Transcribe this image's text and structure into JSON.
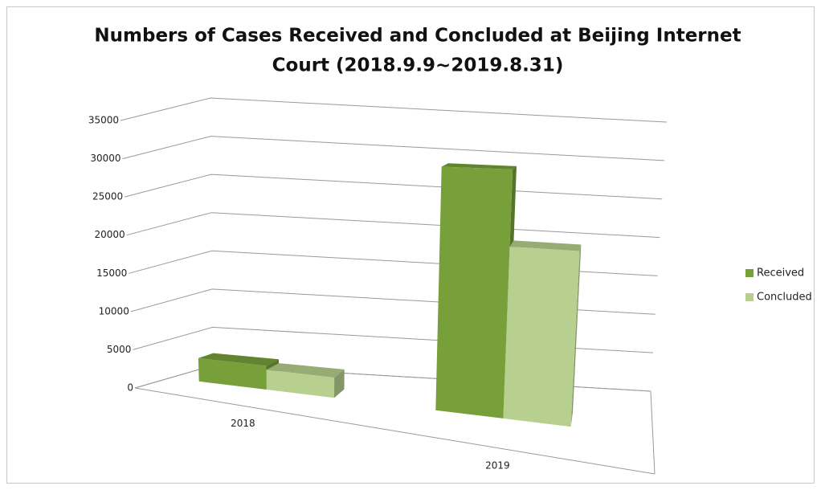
{
  "chart_data": {
    "type": "bar3d",
    "title": [
      "Numbers of Cases Received and Concluded at Beijing Internet",
      "Court (2018.9.9~2019.8.31)"
    ],
    "categories": [
      "2018",
      "2019"
    ],
    "series": [
      {
        "name": "Received",
        "color": "#77a03a",
        "values": [
          3000,
          29000
        ]
      },
      {
        "name": "Concluded",
        "color": "#b8d08f",
        "values": [
          2500,
          20000
        ]
      }
    ],
    "ylim": [
      0,
      35000
    ],
    "yticks": [
      0,
      5000,
      10000,
      15000,
      20000,
      25000,
      30000,
      35000
    ],
    "grid": true,
    "legend": "right"
  }
}
